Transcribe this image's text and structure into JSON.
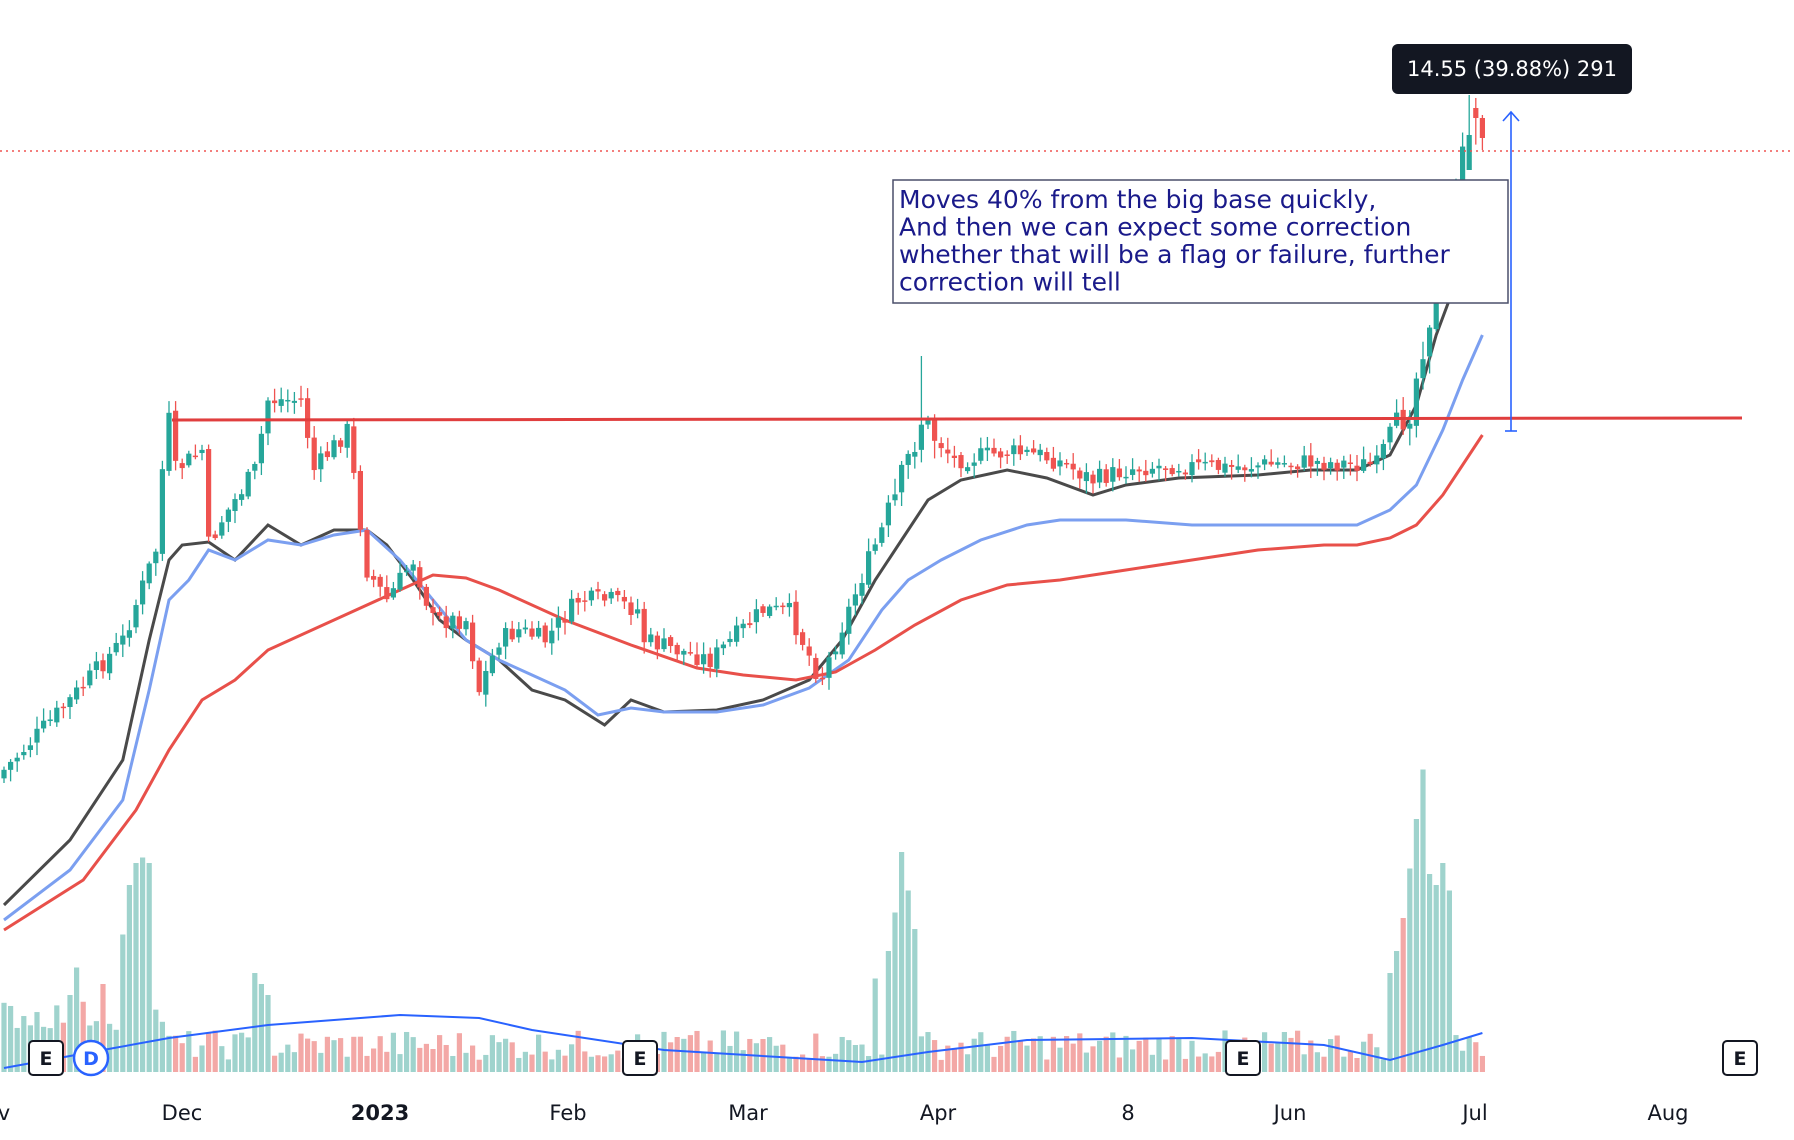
{
  "chart_data": {
    "type": "candlestick",
    "x_axis": {
      "tick_labels": [
        "v",
        "Dec",
        "2023",
        "Feb",
        "Mar",
        "Apr",
        "8",
        "Jun",
        "Jul",
        "Aug"
      ]
    },
    "resistance_line": {
      "label": "",
      "color": "#e03e3e"
    },
    "measure": {
      "badge_text": "14.55 (39.88%) 291",
      "price_change": 14.55,
      "percent_change": 39.88,
      "bars": 291,
      "color": "#2962ff"
    },
    "annotation": {
      "lines": [
        "Moves 40% from the big base quickly,",
        "And then we can expect some correction",
        "whether that will be a flag or failure, further",
        "correction will tell"
      ]
    },
    "event_markers": [
      {
        "label": "E",
        "month": "Nov"
      },
      {
        "label": "D",
        "month": "Nov"
      },
      {
        "label": "E",
        "month": "Feb"
      },
      {
        "label": "E",
        "month": "May"
      },
      {
        "label": "E",
        "month": "Aug"
      }
    ],
    "moving_averages": [
      {
        "name": "",
        "color": "#4a4a4a"
      },
      {
        "name": "",
        "color": "#7b9ff0"
      },
      {
        "name": "",
        "color": "#e8504a"
      }
    ],
    "colors": {
      "up": "#26a69a",
      "down": "#ef5350",
      "volume_up": "#9fd3cd",
      "volume_down": "#f3a8a6",
      "volume_ma": "#2962ff",
      "current_price_line": "#ef5350"
    },
    "grid": false,
    "legend": "none"
  }
}
